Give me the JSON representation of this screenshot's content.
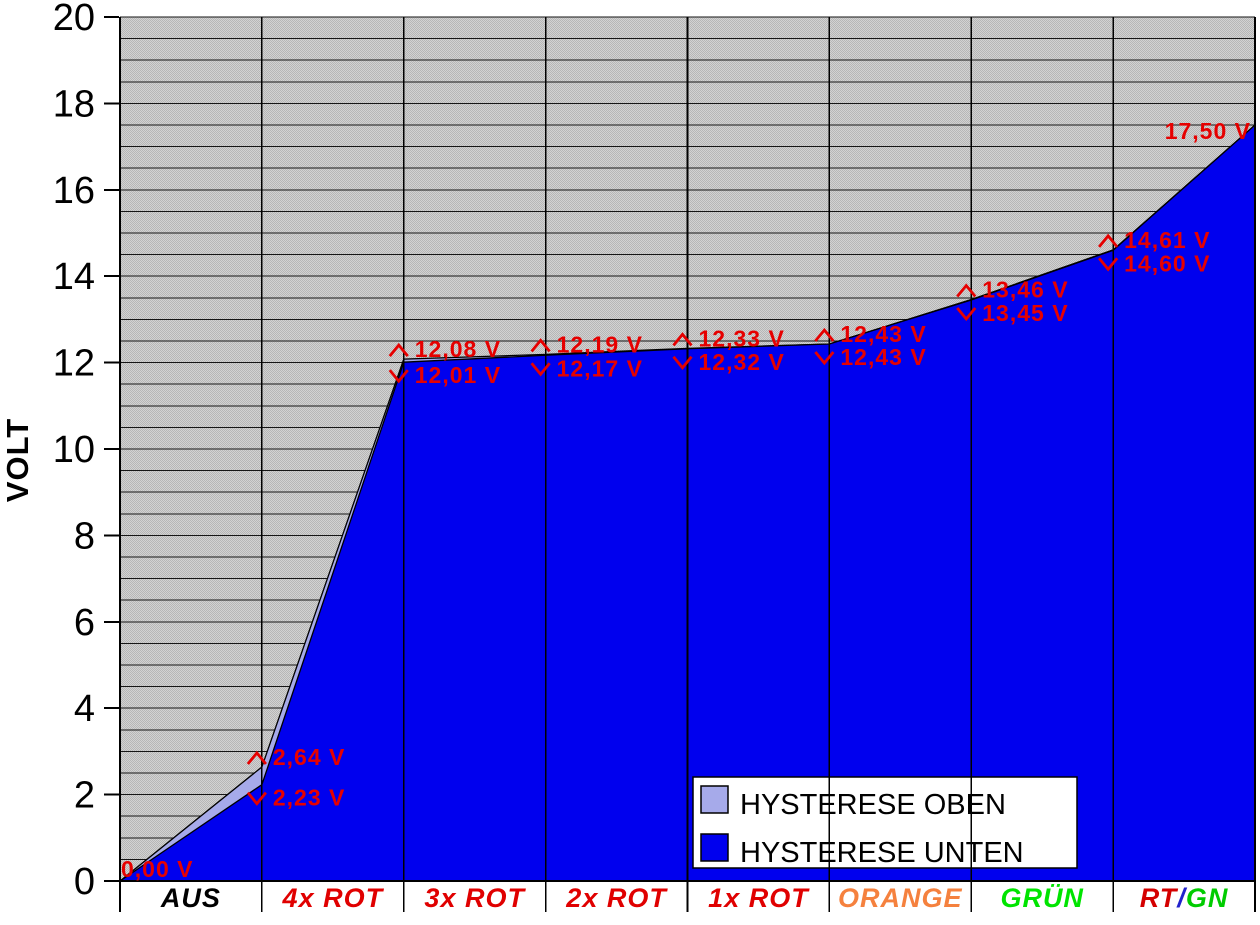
{
  "chart_data": {
    "type": "area",
    "title": "",
    "ylabel": "VOLT",
    "ylim": [
      0,
      20
    ],
    "y_major_step": 2,
    "y_minor_gridline_step": 0.5,
    "y_tick_labels": [
      "0",
      "2",
      "4",
      "6",
      "8",
      "10",
      "12",
      "14",
      "16",
      "18",
      "20"
    ],
    "categories": [
      "AUS",
      "4x ROT",
      "3x ROT",
      "2x ROT",
      "1x ROT",
      "ORANGE",
      "GRÜN",
      "RT/GN"
    ],
    "category_styles": [
      {
        "color": "#000000"
      },
      {
        "color": "#e00000"
      },
      {
        "color": "#e00000"
      },
      {
        "color": "#e00000"
      },
      {
        "color": "#e00000"
      },
      {
        "color": "#f5813e"
      },
      {
        "color": "#00e400"
      },
      {
        "parts": [
          {
            "text": "RT",
            "color": "#d40000"
          },
          {
            "text": "/",
            "color": "#2222cc"
          },
          {
            "text": "GN",
            "color": "#00cc00"
          }
        ]
      }
    ],
    "series": [
      {
        "name": "HYSTERESE OBEN",
        "color": "#a6aaea",
        "values": [
          0.0,
          2.64,
          12.08,
          12.19,
          12.33,
          12.43,
          13.46,
          14.61,
          17.5
        ]
      },
      {
        "name": "HYSTERESE UNTEN",
        "color": "#0000ee",
        "values": [
          0.0,
          2.23,
          12.01,
          12.17,
          12.32,
          12.43,
          13.45,
          14.6,
          17.5
        ]
      }
    ],
    "point_labels": [
      {
        "single": "0,00 V",
        "anchor": "start"
      },
      {
        "up": "2,64 V",
        "down": "2,23 V"
      },
      {
        "up": "12,08 V",
        "down": "12,01 V"
      },
      {
        "up": "12,19 V",
        "down": "12,17 V"
      },
      {
        "up": "12,33 V",
        "down": "12,32 V"
      },
      {
        "up": "12,43 V",
        "down": "12,43 V"
      },
      {
        "up": "13,46 V",
        "down": "13,45 V"
      },
      {
        "up": "14,61 V",
        "down": "14,60 V"
      },
      {
        "single": "17,50 V",
        "anchor": "end"
      }
    ],
    "marker_up_icon": "caret-up",
    "marker_down_icon": "caret-down",
    "label_color": "#e60000",
    "legend": {
      "position": "bottom-right",
      "items": [
        {
          "label": "HYSTERESE OBEN"
        },
        {
          "label": "HYSTERESE UNTEN"
        }
      ]
    },
    "grid": "horizontal-minor-0.5V",
    "plot_background": "dotted-gray"
  }
}
